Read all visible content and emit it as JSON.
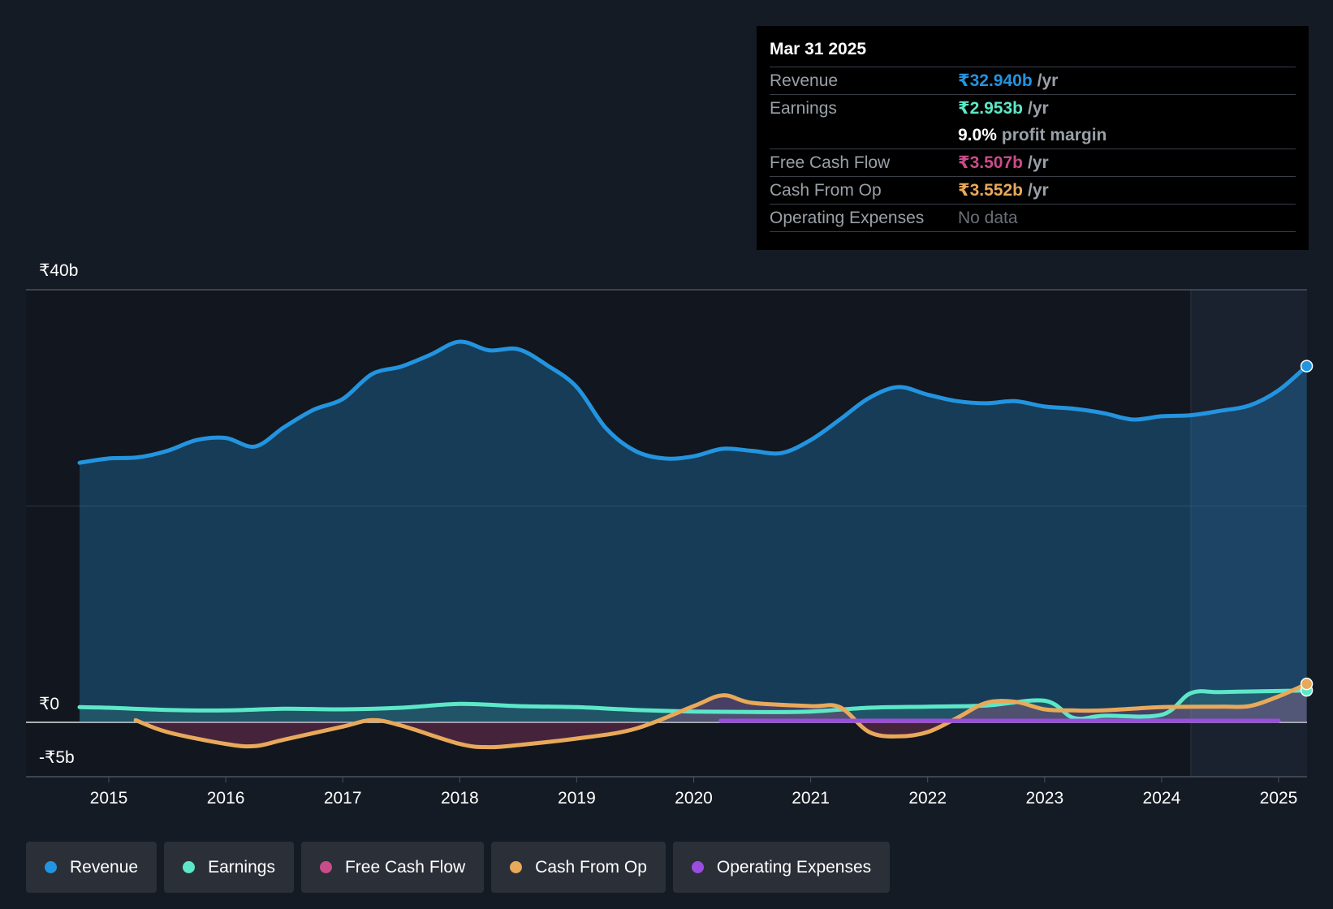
{
  "tooltip": {
    "date": "Mar 31 2025",
    "rows": [
      {
        "label": "Revenue",
        "value": "₹32.940b",
        "unit": "/yr",
        "color": "#2394df"
      },
      {
        "label": "Earnings",
        "value": "₹2.953b",
        "unit": "/yr",
        "color": "#5ce8c8"
      },
      {
        "label": "",
        "value": "9.0%",
        "unit": "profit margin",
        "color": "#ffffff"
      },
      {
        "label": "Free Cash Flow",
        "value": "₹3.507b",
        "unit": "/yr",
        "color": "#c94c8a"
      },
      {
        "label": "Cash From Op",
        "value": "₹3.552b",
        "unit": "/yr",
        "color": "#e8a95a"
      },
      {
        "label": "Operating Expenses",
        "value": "No data",
        "unit": "",
        "color": "#6b7078"
      }
    ]
  },
  "legend": [
    {
      "label": "Revenue",
      "color": "#2394df"
    },
    {
      "label": "Earnings",
      "color": "#5ce8c8"
    },
    {
      "label": "Free Cash Flow",
      "color": "#c94c8a"
    },
    {
      "label": "Cash From Op",
      "color": "#e8a95a"
    },
    {
      "label": "Operating Expenses",
      "color": "#9b4de0"
    }
  ],
  "chart_data": {
    "type": "area",
    "title": "",
    "xlabel": "",
    "ylabel": "",
    "x_ticks": [
      "2015",
      "2016",
      "2017",
      "2018",
      "2019",
      "2020",
      "2021",
      "2022",
      "2023",
      "2024",
      "2025"
    ],
    "y_tick_labels": [
      "₹40b",
      "₹0",
      "-₹5b"
    ],
    "y_ticks": [
      40,
      0,
      -5
    ],
    "ylim": [
      -5,
      40
    ],
    "xlim": [
      2014.3,
      2025.24
    ],
    "forecast_start": 2024.25,
    "series": [
      {
        "name": "Revenue",
        "color": "#2394df",
        "fill": true,
        "x": [
          2014.75,
          2015.0,
          2015.25,
          2015.5,
          2015.75,
          2016.0,
          2016.25,
          2016.5,
          2016.75,
          2017.0,
          2017.25,
          2017.5,
          2017.75,
          2018.0,
          2018.25,
          2018.5,
          2018.75,
          2019.0,
          2019.25,
          2019.5,
          2019.75,
          2020.0,
          2020.25,
          2020.5,
          2020.75,
          2021.0,
          2021.25,
          2021.5,
          2021.75,
          2022.0,
          2022.25,
          2022.5,
          2022.75,
          2023.0,
          2023.25,
          2023.5,
          2023.75,
          2024.0,
          2024.25,
          2024.5,
          2024.75,
          2025.0,
          2025.24
        ],
        "values": [
          24.0,
          24.4,
          24.5,
          25.1,
          26.1,
          26.3,
          25.5,
          27.3,
          28.9,
          29.9,
          32.2,
          32.9,
          34.0,
          35.2,
          34.4,
          34.5,
          33.0,
          31.0,
          27.2,
          25.1,
          24.4,
          24.6,
          25.3,
          25.1,
          24.9,
          26.1,
          28.0,
          30.0,
          31.0,
          30.3,
          29.7,
          29.5,
          29.7,
          29.2,
          29.0,
          28.6,
          28.0,
          28.3,
          28.4,
          28.8,
          29.3,
          30.7,
          32.94
        ]
      },
      {
        "name": "Earnings",
        "color": "#5ce8c8",
        "fill": true,
        "x": [
          2014.75,
          2015.0,
          2015.5,
          2016.0,
          2016.5,
          2017.0,
          2017.5,
          2018.0,
          2018.5,
          2019.0,
          2019.5,
          2020.0,
          2020.5,
          2021.0,
          2021.5,
          2022.0,
          2022.5,
          2023.0,
          2023.25,
          2023.5,
          2024.0,
          2024.25,
          2024.5,
          2025.0,
          2025.24
        ],
        "values": [
          1.4,
          1.35,
          1.15,
          1.1,
          1.25,
          1.2,
          1.35,
          1.7,
          1.5,
          1.4,
          1.15,
          1.0,
          0.95,
          1.0,
          1.35,
          1.45,
          1.55,
          2.0,
          0.4,
          0.6,
          0.7,
          2.7,
          2.8,
          2.9,
          2.953
        ]
      },
      {
        "name": "Free Cash Flow",
        "color": "#c94c8a",
        "fill": true,
        "x": [
          2015.23,
          2015.5,
          2016.0,
          2016.25,
          2016.5,
          2017.0,
          2017.25,
          2017.5,
          2018.0,
          2018.25,
          2018.5,
          2019.0,
          2019.5,
          2020.0,
          2020.25,
          2020.5,
          2021.0,
          2021.25,
          2021.5,
          2021.75,
          2022.0,
          2022.25,
          2022.5,
          2022.75,
          2023.0,
          2023.25,
          2023.5,
          2024.0,
          2024.5,
          2024.75,
          2025.0,
          2025.24
        ],
        "values": [
          0.2,
          -0.9,
          -2.0,
          -2.2,
          -1.6,
          -0.4,
          0.2,
          -0.3,
          -2.0,
          -2.3,
          -2.1,
          -1.5,
          -0.6,
          1.5,
          2.5,
          1.8,
          1.5,
          1.4,
          -0.9,
          -1.3,
          -0.9,
          0.4,
          1.8,
          1.9,
          1.2,
          1.1,
          1.1,
          1.4,
          1.45,
          1.5,
          2.4,
          3.507
        ]
      },
      {
        "name": "Cash From Op",
        "color": "#e8a95a",
        "fill": false,
        "x": [
          2015.23,
          2015.5,
          2016.0,
          2016.25,
          2016.5,
          2017.0,
          2017.25,
          2017.5,
          2018.0,
          2018.25,
          2018.5,
          2019.0,
          2019.5,
          2020.0,
          2020.25,
          2020.5,
          2021.0,
          2021.25,
          2021.5,
          2021.75,
          2022.0,
          2022.25,
          2022.5,
          2022.75,
          2023.0,
          2023.25,
          2023.5,
          2024.0,
          2024.5,
          2024.75,
          2025.0,
          2025.24
        ],
        "values": [
          0.2,
          -0.9,
          -2.0,
          -2.2,
          -1.6,
          -0.4,
          0.2,
          -0.3,
          -2.0,
          -2.3,
          -2.1,
          -1.5,
          -0.6,
          1.5,
          2.5,
          1.8,
          1.5,
          1.4,
          -0.9,
          -1.3,
          -0.9,
          0.4,
          1.8,
          1.9,
          1.2,
          1.1,
          1.1,
          1.4,
          1.45,
          1.5,
          2.4,
          3.552
        ]
      },
      {
        "name": "Operating Expenses",
        "color": "#9b4de0",
        "fill": false,
        "x": [
          2020.23,
          2025.0
        ],
        "values": [
          0.15,
          0.15
        ]
      }
    ]
  }
}
